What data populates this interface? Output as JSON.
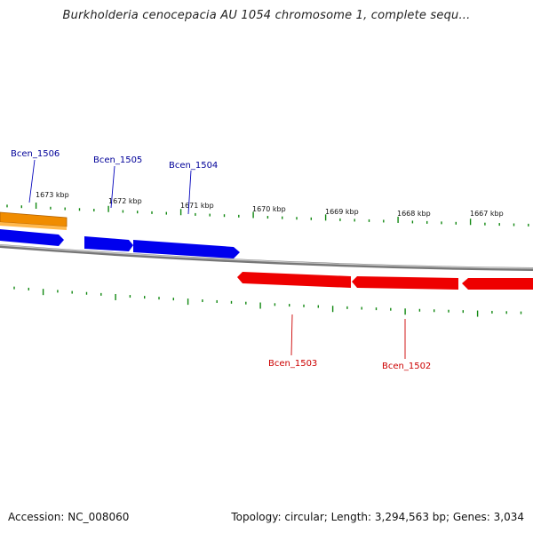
{
  "title": "Burkholderia cenocepacia AU 1054 chromosome 1, complete sequ...",
  "footer": {
    "accession": "Accession: NC_008060",
    "summary": "Topology: circular; Length: 3,294,563 bp; Genes: 3,034"
  },
  "colors": {
    "plus_strand": "#0000ee",
    "minus_strand": "#ee0000",
    "other_feature": "#f08c00",
    "backbone": "#888888",
    "ticks": "#118811",
    "label_plus": "#000099",
    "label_minus": "#cc0000"
  },
  "scale_labels": [
    "1673 kbp",
    "1672 kbp",
    "1671 kbp",
    "1670 kbp",
    "1669 kbp",
    "1668 kbp",
    "1667 kbp"
  ],
  "genes_plus": [
    {
      "name": "Bcen_1506",
      "label_color": "label_plus"
    },
    {
      "name": "Bcen_1505",
      "label_color": "label_plus"
    },
    {
      "name": "Bcen_1504",
      "label_color": "label_plus"
    }
  ],
  "genes_minus": [
    {
      "name": "Bcen_1503",
      "label_color": "label_minus"
    },
    {
      "name": "Bcen_1502",
      "label_color": "label_minus"
    }
  ]
}
